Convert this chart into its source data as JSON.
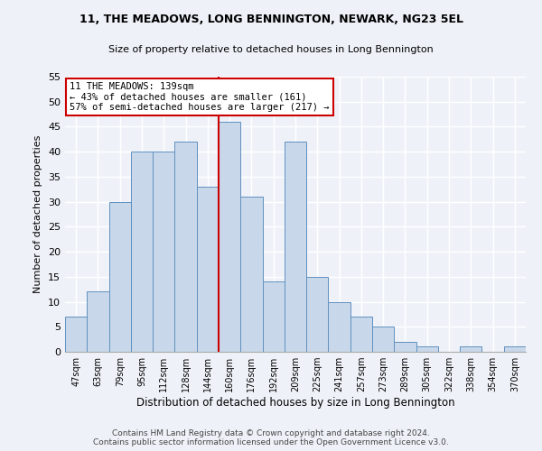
{
  "title": "11, THE MEADOWS, LONG BENNINGTON, NEWARK, NG23 5EL",
  "subtitle": "Size of property relative to detached houses in Long Bennington",
  "xlabel": "Distribution of detached houses by size in Long Bennington",
  "ylabel": "Number of detached properties",
  "bar_color": "#c8d8ea",
  "bar_edge_color": "#6090c0",
  "categories": [
    "47sqm",
    "63sqm",
    "79sqm",
    "95sqm",
    "112sqm",
    "128sqm",
    "144sqm",
    "160sqm",
    "176sqm",
    "192sqm",
    "209sqm",
    "225sqm",
    "241sqm",
    "257sqm",
    "273sqm",
    "289sqm",
    "305sqm",
    "322sqm",
    "338sqm",
    "354sqm",
    "370sqm"
  ],
  "values": [
    7,
    12,
    30,
    40,
    40,
    42,
    33,
    46,
    31,
    14,
    42,
    15,
    10,
    7,
    5,
    2,
    1,
    0,
    1,
    0,
    1
  ],
  "vline_index": 6,
  "vline_color": "#cc0000",
  "ylim": [
    0,
    55
  ],
  "yticks": [
    0,
    5,
    10,
    15,
    20,
    25,
    30,
    35,
    40,
    45,
    50,
    55
  ],
  "annotation_title": "11 THE MEADOWS: 139sqm",
  "annotation_line1": "← 43% of detached houses are smaller (161)",
  "annotation_line2": "57% of semi-detached houses are larger (217) →",
  "annotation_box_color": "#ffffff",
  "annotation_box_edge": "#cc0000",
  "footer1": "Contains HM Land Registry data © Crown copyright and database right 2024.",
  "footer2": "Contains public sector information licensed under the Open Government Licence v3.0.",
  "background_color": "#eef2f8",
  "grid_color": "#ffffff"
}
